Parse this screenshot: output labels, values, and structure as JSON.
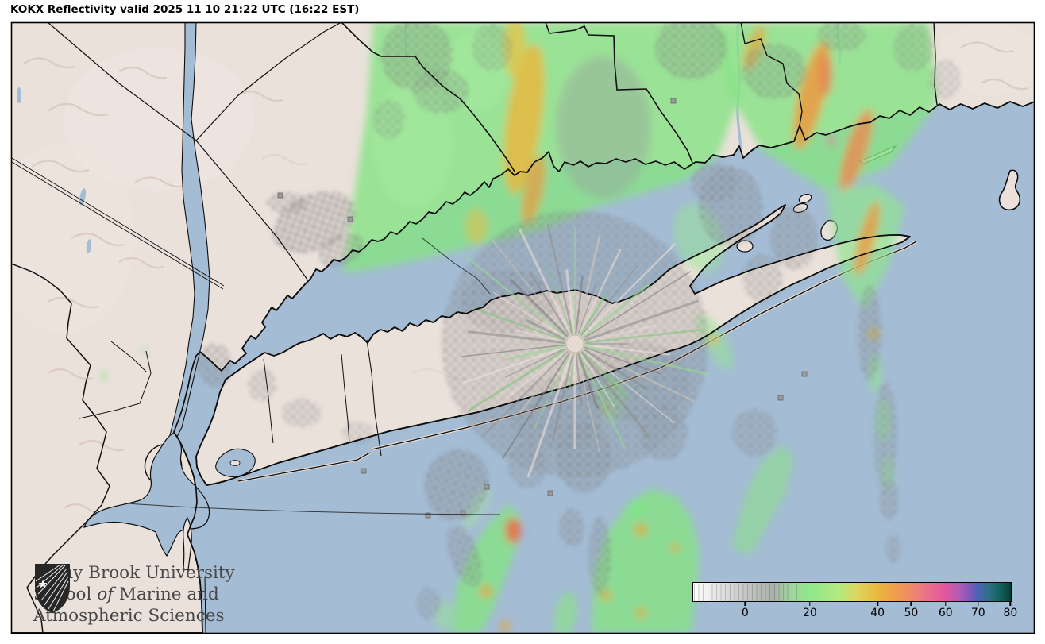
{
  "title": "KOKX Reflectivity valid 2025 11 10 21:22 UTC (16:22 EST)",
  "logo": {
    "line1": "Stony Brook University",
    "line2_pre": "School ",
    "line2_italic": "of",
    "line2_post": " Marine and",
    "line3": "Atmospheric Sciences"
  },
  "colorbar": {
    "tick_labels": [
      "0",
      "20",
      "40",
      "50",
      "60",
      "70",
      "80"
    ],
    "scale": [
      {
        "value": 0,
        "color": "#c6c6c6"
      },
      {
        "value": 20,
        "color": "#8fe88c"
      },
      {
        "value": 40,
        "color": "#e9b83f"
      },
      {
        "value": 50,
        "color": "#f08a68"
      },
      {
        "value": 60,
        "color": "#e2559e"
      },
      {
        "value": 70,
        "color": "#4a63b5"
      },
      {
        "value": 80,
        "color": "#093f37"
      }
    ]
  },
  "palette": {
    "sea": "#a4bcd4",
    "land": "#ebe1db",
    "coast": "#0d0d0d",
    "echo_light": "#a8eda0",
    "echo_green": "#86e285",
    "echo_gold": "#e8b93f",
    "echo_orange": "#ee8a50",
    "echo_pink": "#e0559c",
    "clutter_gray": "#9a9a9a"
  }
}
